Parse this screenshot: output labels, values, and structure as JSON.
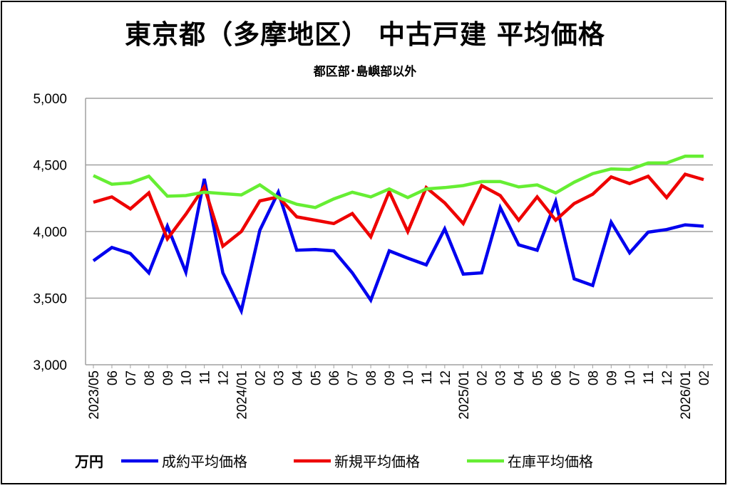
{
  "chart_data": {
    "type": "line",
    "title": "東京都（多摩地区） 中古戸建 平均価格",
    "subtitle": "都区部･島嶼部以外",
    "unit_label": "万円",
    "ylim": [
      3000,
      5000
    ],
    "yticks": [
      3000,
      3500,
      4000,
      4500,
      5000
    ],
    "ytick_labels": [
      "3,000",
      "3,500",
      "4,000",
      "4,500",
      "5,000"
    ],
    "grid": true,
    "legend_position": "bottom",
    "categories": [
      "2023/05",
      "06",
      "07",
      "08",
      "09",
      "10",
      "11",
      "12",
      "2024/01",
      "02",
      "03",
      "04",
      "05",
      "06",
      "07",
      "08",
      "09",
      "10",
      "11",
      "12",
      "2025/01",
      "02",
      "03",
      "04",
      "05",
      "06",
      "07",
      "08",
      "09",
      "10",
      "11",
      "12",
      "2026/01",
      "02"
    ],
    "series": [
      {
        "name": "成約平均価格",
        "color": "#0000ee",
        "values": [
          3780,
          3880,
          3835,
          3690,
          4040,
          3695,
          4395,
          3690,
          3405,
          4010,
          4295,
          3860,
          3865,
          3855,
          3690,
          3485,
          3855,
          3800,
          3750,
          4020,
          3680,
          3690,
          4180,
          3900,
          3860,
          4225,
          3645,
          3595,
          4070,
          3840,
          3995,
          4015,
          4050,
          4040
        ]
      },
      {
        "name": "新規平均価格",
        "color": "#ee0000",
        "values": [
          4220,
          4260,
          4170,
          4290,
          3945,
          4130,
          4335,
          3890,
          4000,
          4230,
          4260,
          4110,
          4085,
          4060,
          4135,
          3960,
          4300,
          4000,
          4330,
          4215,
          4060,
          4345,
          4270,
          4085,
          4260,
          4085,
          4210,
          4280,
          4410,
          4360,
          4415,
          4255,
          4430,
          4390
        ]
      },
      {
        "name": "在庫平均価格",
        "color": "#66ee33",
        "values": [
          4420,
          4355,
          4365,
          4415,
          4265,
          4270,
          4295,
          4285,
          4275,
          4350,
          4255,
          4205,
          4180,
          4245,
          4295,
          4260,
          4320,
          4255,
          4320,
          4330,
          4345,
          4375,
          4375,
          4335,
          4350,
          4290,
          4370,
          4435,
          4470,
          4465,
          4515,
          4515,
          4565,
          4565
        ]
      }
    ]
  }
}
